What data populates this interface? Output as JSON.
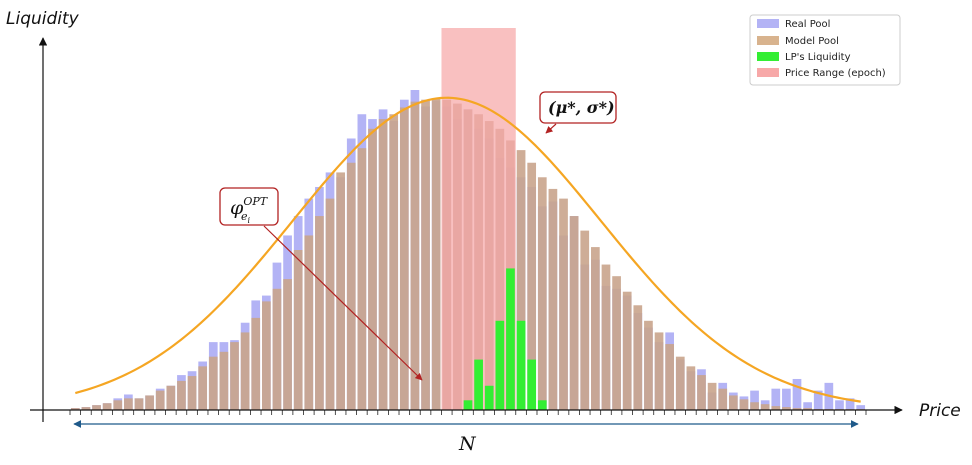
{
  "chart_data": {
    "type": "bar",
    "xlabel": "Price",
    "ylabel": "Liquidity",
    "ylim": [
      0,
      330
    ],
    "bin_count_label": "N",
    "legend": {
      "position": "top-right",
      "items": [
        {
          "label": "Real Pool",
          "color": "#b3b3f5"
        },
        {
          "label": "Model Pool",
          "color": "#d8b38e"
        },
        {
          "label": "LP's Liquidity",
          "color": "#33ee33"
        },
        {
          "label": "Price Range (epoch)",
          "color": "#f7a8a8"
        }
      ]
    },
    "price_range_bins": [
      35,
      41
    ],
    "series": [
      {
        "name": "Real Pool",
        "values": [
          2,
          3,
          5,
          7,
          12,
          16,
          12,
          15,
          22,
          25,
          36,
          40,
          50,
          70,
          70,
          72,
          90,
          113,
          118,
          152,
          180,
          200,
          218,
          230,
          245,
          240,
          280,
          305,
          300,
          310,
          298,
          320,
          330,
          313,
          319,
          313,
          300,
          310,
          290,
          280,
          260,
          250,
          240,
          230,
          210,
          215,
          180,
          200,
          150,
          155,
          128,
          125,
          118,
          100,
          85,
          70,
          80,
          52,
          40,
          42,
          18,
          28,
          18,
          14,
          20,
          10,
          22,
          22,
          32,
          8,
          20,
          28,
          10,
          12,
          5
        ]
      },
      {
        "name": "Model Pool",
        "values": [
          2,
          3,
          5,
          7,
          10,
          12,
          12,
          15,
          20,
          25,
          30,
          35,
          45,
          55,
          60,
          70,
          80,
          95,
          112,
          125,
          135,
          165,
          180,
          200,
          218,
          245,
          255,
          270,
          290,
          300,
          305,
          312,
          318,
          320,
          321,
          320,
          316,
          310,
          305,
          298,
          290,
          278,
          268,
          255,
          240,
          228,
          218,
          200,
          185,
          168,
          150,
          138,
          122,
          108,
          92,
          80,
          68,
          55,
          45,
          36,
          28,
          22,
          15,
          11,
          8,
          6,
          4,
          3,
          2,
          2,
          1,
          1,
          1,
          1,
          1
        ]
      },
      {
        "name": "LP's Liquidity",
        "values": [
          0,
          0,
          0,
          0,
          0,
          0,
          0,
          0,
          0,
          0,
          0,
          0,
          0,
          0,
          0,
          0,
          0,
          0,
          0,
          0,
          0,
          0,
          0,
          0,
          0,
          0,
          0,
          0,
          0,
          0,
          0,
          0,
          0,
          0,
          0,
          0,
          0,
          10,
          52,
          25,
          92,
          146,
          92,
          52,
          10,
          0,
          0,
          0,
          0,
          0,
          0,
          0,
          0,
          0,
          0,
          0,
          0,
          0,
          0,
          0,
          0,
          0,
          0,
          0,
          0,
          0,
          0,
          0,
          0,
          0,
          0,
          0,
          0,
          0,
          0
        ]
      },
      {
        "name": "Model Pool fit",
        "type": "line",
        "color": "#f5a623",
        "mean_bin": 35,
        "peak": 322,
        "sigma_bins": 14.5
      }
    ],
    "annotations": [
      {
        "label": "(μ*, σ*)",
        "target": "curve"
      },
      {
        "label": "φ",
        "sup": "OPT",
        "sub": "e",
        "subsub": "i",
        "target": "LP's Liquidity"
      }
    ]
  }
}
